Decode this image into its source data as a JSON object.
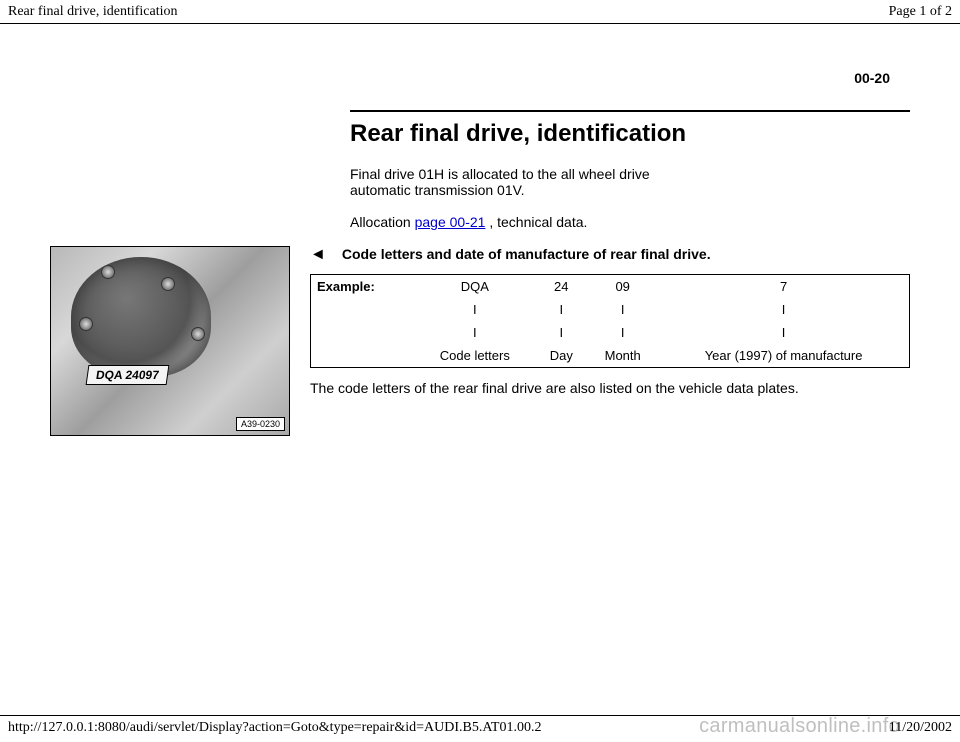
{
  "header": {
    "left": "Rear final drive, identification",
    "right": "Page 1 of 2"
  },
  "page_number": "00-20",
  "title": "Rear final drive, identification",
  "intro1": "Final drive 01H is allocated to the all wheel drive automatic transmission 01V.",
  "allocation_prefix": "Allocation   ",
  "allocation_link": "page 00-21",
  "allocation_suffix": " , technical data.",
  "pointer": "◄",
  "subheading": "Code letters and date of manufacture of rear final drive.",
  "figure": {
    "plate_label": "DQA 24097",
    "corner_ref": "A39-0230"
  },
  "table": {
    "row_label": "Example:",
    "cells_r1": [
      "DQA",
      "24",
      "09",
      "7"
    ],
    "cells_r2": [
      "I",
      "I",
      "I",
      "I"
    ],
    "cells_r3": [
      "I",
      "I",
      "I",
      "I"
    ],
    "cells_r4": [
      "Code letters",
      "Day",
      "Month",
      "Year (1997) of manufacture"
    ]
  },
  "note": "The code letters of the rear final drive are also listed on the vehicle data plates.",
  "footer": {
    "url": "http://127.0.0.1:8080/audi/servlet/Display?action=Goto&type=repair&id=AUDI.B5.AT01.00.2",
    "date": "11/20/2002"
  },
  "watermark": "carmanualsonline.info"
}
